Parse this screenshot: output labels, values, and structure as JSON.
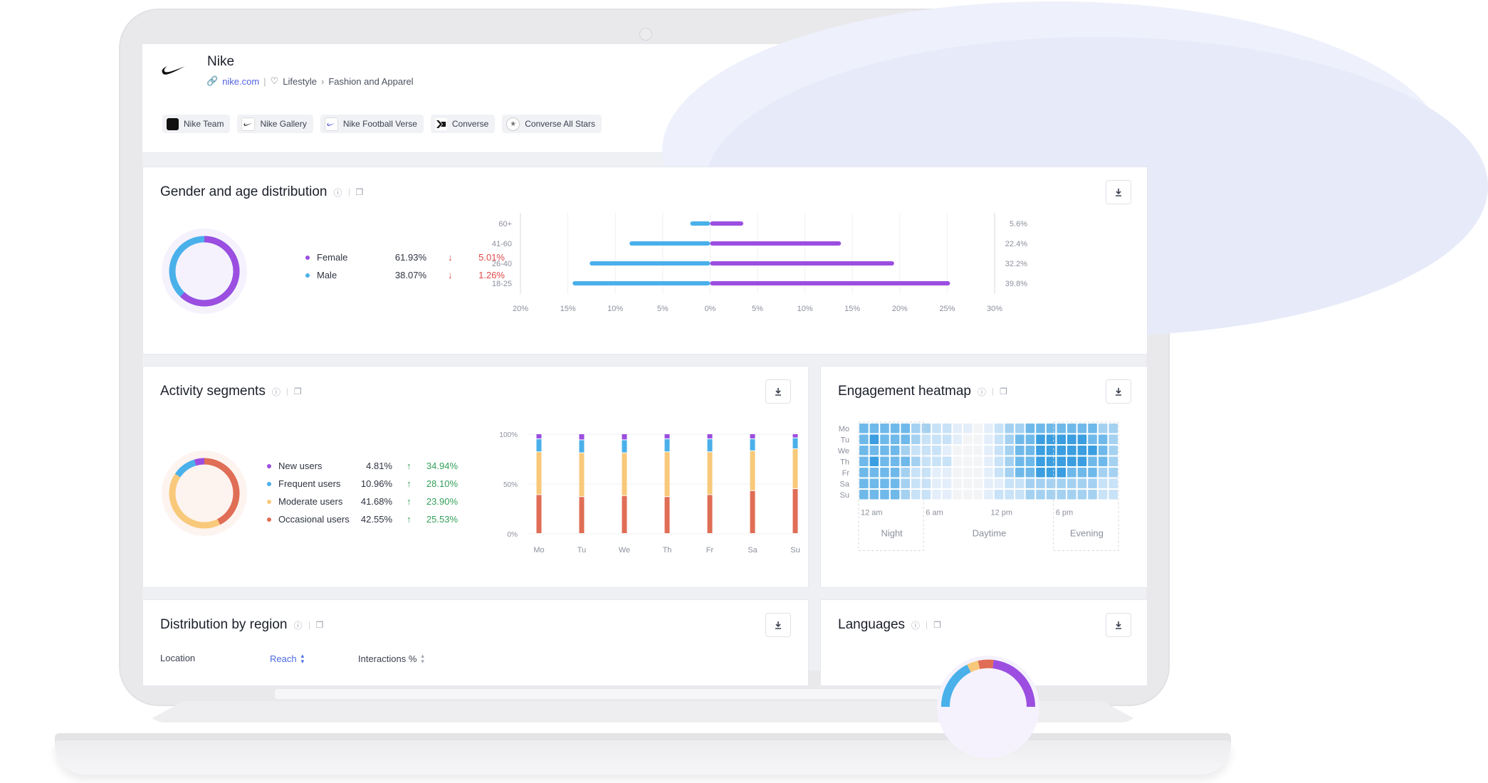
{
  "brand": {
    "name": "Nike",
    "website": "nike.com",
    "category": "Lifestyle",
    "subcategory": "Fashion and Apparel",
    "accounts": [
      {
        "label": "Nike Team",
        "icon": "nike-team-avatar"
      },
      {
        "label": "Nike Gallery",
        "icon": "swoosh-icon"
      },
      {
        "label": "Nike Football Verse",
        "icon": "football-verse-avatar"
      },
      {
        "label": "Converse",
        "icon": "converse-logo-icon"
      },
      {
        "label": "Converse All Stars",
        "icon": "all-star-badge-icon"
      }
    ]
  },
  "gender_age": {
    "title": "Gender and age distribution",
    "legend": [
      {
        "label": "Female",
        "value": "61.93%",
        "change": "5.01%",
        "direction": "down",
        "color": "#9b4ee0"
      },
      {
        "label": "Male",
        "value": "38.07%",
        "change": "1.26%",
        "direction": "down",
        "color": "#4ab0ea"
      }
    ],
    "donut_split": [
      61.93,
      38.07
    ]
  },
  "activity": {
    "title": "Activity segments",
    "legend": [
      {
        "label": "New users",
        "value": "4.81%",
        "change": "34.94%",
        "direction": "up",
        "color": "#9b4ee0"
      },
      {
        "label": "Frequent users",
        "value": "10.96%",
        "change": "28.10%",
        "direction": "up",
        "color": "#4ab0ea"
      },
      {
        "label": "Moderate users",
        "value": "41.68%",
        "change": "23.90%",
        "direction": "up",
        "color": "#f8c97a"
      },
      {
        "label": "Occasional users",
        "value": "42.55%",
        "change": "25.53%",
        "direction": "up",
        "color": "#e06d55"
      }
    ]
  },
  "heatmap": {
    "title": "Engagement heatmap",
    "days": [
      "Mo",
      "Tu",
      "We",
      "Th",
      "Fr",
      "Sa",
      "Su"
    ],
    "time_ticks": [
      "12 am",
      "6 am",
      "12 pm",
      "6 pm"
    ],
    "periods": [
      "Night",
      "Daytime",
      "Evening"
    ],
    "scale_colors": [
      "#f3f4f6",
      "#e3eefa",
      "#c8e2f7",
      "#a5d1f1",
      "#6fb9ea",
      "#3a9ee0"
    ],
    "levels": [
      [
        4,
        4,
        4,
        4,
        4,
        3,
        3,
        2,
        2,
        1,
        1,
        0,
        1,
        2,
        3,
        3,
        4,
        4,
        4,
        4,
        4,
        4,
        4,
        3,
        3
      ],
      [
        4,
        5,
        4,
        4,
        4,
        3,
        2,
        2,
        2,
        1,
        0,
        0,
        1,
        2,
        3,
        4,
        4,
        5,
        5,
        5,
        5,
        5,
        4,
        4,
        3
      ],
      [
        4,
        4,
        4,
        4,
        3,
        2,
        2,
        2,
        1,
        0,
        0,
        0,
        1,
        2,
        3,
        4,
        4,
        5,
        5,
        5,
        5,
        5,
        5,
        4,
        3
      ],
      [
        4,
        5,
        4,
        4,
        4,
        3,
        2,
        2,
        2,
        0,
        0,
        0,
        1,
        2,
        3,
        4,
        4,
        5,
        5,
        5,
        5,
        5,
        4,
        4,
        3
      ],
      [
        4,
        4,
        4,
        4,
        3,
        2,
        2,
        1,
        1,
        0,
        0,
        0,
        1,
        2,
        3,
        4,
        4,
        5,
        5,
        5,
        4,
        4,
        4,
        3,
        3
      ],
      [
        4,
        4,
        4,
        4,
        3,
        2,
        2,
        1,
        1,
        0,
        0,
        0,
        1,
        1,
        2,
        2,
        3,
        3,
        3,
        3,
        3,
        3,
        3,
        2,
        2
      ],
      [
        4,
        4,
        4,
        4,
        3,
        2,
        2,
        1,
        1,
        0,
        0,
        0,
        1,
        2,
        2,
        2,
        3,
        3,
        3,
        3,
        3,
        3,
        3,
        2,
        2
      ]
    ]
  },
  "region": {
    "title": "Distribution by region",
    "columns": [
      "Location",
      "Reach",
      "Interactions %"
    ]
  },
  "languages": {
    "title": "Languages"
  },
  "chart_data": [
    {
      "type": "bar",
      "orientation": "horizontal",
      "categories": [
        "60+",
        "41-60",
        "26-40",
        "18-25"
      ],
      "series": [
        {
          "name": "Male",
          "values": [
            2.1,
            8.5,
            12.7,
            14.5
          ],
          "color": "#4ab0ea"
        },
        {
          "name": "Female",
          "values": [
            3.5,
            13.8,
            19.4,
            25.3
          ],
          "color": "#9b4ee0"
        }
      ],
      "totals": [
        "5.6%",
        "22.4%",
        "32.2%",
        "39.8%"
      ],
      "x_ticks": [
        "20%",
        "15%",
        "10%",
        "5%",
        "0%",
        "5%",
        "10%",
        "15%",
        "20%",
        "25%",
        "30%"
      ],
      "xlim": [
        -20,
        30
      ]
    },
    {
      "type": "bar",
      "stacked": true,
      "categories": [
        "Mo",
        "Tu",
        "We",
        "Th",
        "Fr",
        "Sa",
        "Su"
      ],
      "series": [
        {
          "name": "Occasional users",
          "values": [
            39,
            37,
            38,
            37,
            39,
            43,
            45
          ],
          "color": "#e06d55"
        },
        {
          "name": "Moderate users",
          "values": [
            43,
            44,
            43,
            45,
            43,
            40,
            40
          ],
          "color": "#f8c97a"
        },
        {
          "name": "Frequent users",
          "values": [
            13,
            13,
            13,
            13,
            13,
            12,
            11
          ],
          "color": "#4ab0ea"
        },
        {
          "name": "New users",
          "values": [
            5,
            6,
            6,
            5,
            5,
            5,
            4
          ],
          "color": "#9b4ee0"
        }
      ],
      "y_ticks": [
        "0%",
        "50%",
        "100%"
      ],
      "ylim": [
        0,
        100
      ]
    }
  ]
}
